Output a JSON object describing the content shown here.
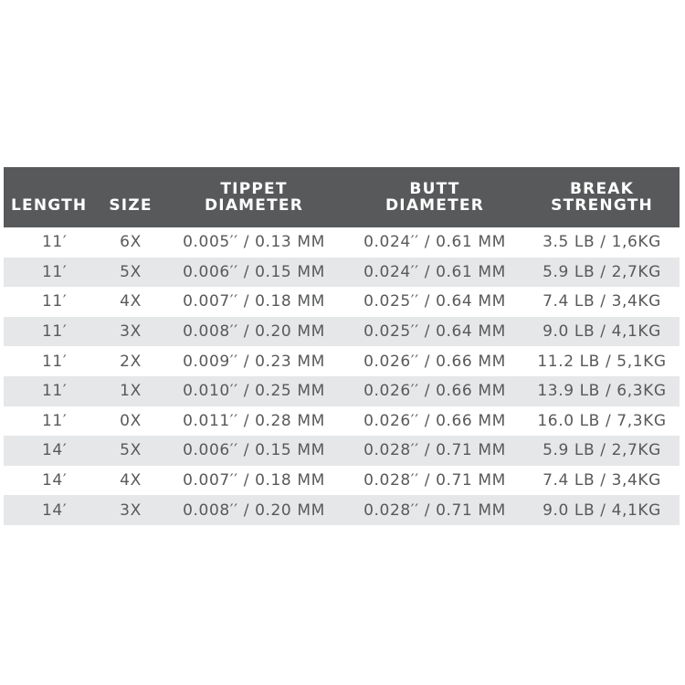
{
  "headers": {
    "length": "LENGTH",
    "size": "SIZE",
    "tippet_line1": "TIPPET",
    "tippet_line2": "DIAMETER",
    "butt_line1": "BUTT",
    "butt_line2": "DIAMETER",
    "break_line1": "BREAK",
    "break_line2": "STRENGTH"
  },
  "rows": [
    {
      "length": "11′",
      "size": "6X",
      "tippet": "0.005′′ / 0.13 MM",
      "butt": "0.024′′ / 0.61 MM",
      "break": "3.5 LB / 1,6KG"
    },
    {
      "length": "11′",
      "size": "5X",
      "tippet": "0.006′′ / 0.15 MM",
      "butt": "0.024′′ / 0.61 MM",
      "break": "5.9 LB / 2,7KG"
    },
    {
      "length": "11′",
      "size": "4X",
      "tippet": "0.007′′ / 0.18 MM",
      "butt": "0.025′′ / 0.64 MM",
      "break": "7.4 LB / 3,4KG"
    },
    {
      "length": "11′",
      "size": "3X",
      "tippet": "0.008′′ / 0.20 MM",
      "butt": "0.025′′ / 0.64 MM",
      "break": "9.0 LB / 4,1KG"
    },
    {
      "length": "11′",
      "size": "2X",
      "tippet": "0.009′′ / 0.23 MM",
      "butt": "0.026′′ / 0.66 MM",
      "break": "11.2 LB / 5,1KG"
    },
    {
      "length": "11′",
      "size": "1X",
      "tippet": "0.010′′ / 0.25 MM",
      "butt": "0.026′′ / 0.66 MM",
      "break": "13.9 LB / 6,3KG"
    },
    {
      "length": "11′",
      "size": "0X",
      "tippet": "0.011′′ / 0.28 MM",
      "butt": "0.026′′ / 0.66 MM",
      "break": "16.0 LB / 7,3KG"
    },
    {
      "length": "14′",
      "size": "5X",
      "tippet": "0.006′′ / 0.15 MM",
      "butt": "0.028′′ / 0.71 MM",
      "break": "5.9 LB / 2,7KG"
    },
    {
      "length": "14′",
      "size": "4X",
      "tippet": "0.007′′ / 0.18 MM",
      "butt": "0.028′′ / 0.71 MM",
      "break": "7.4 LB / 3,4KG"
    },
    {
      "length": "14′",
      "size": "3X",
      "tippet": "0.008′′ / 0.20 MM",
      "butt": "0.028′′ / 0.71 MM",
      "break": "9.0 LB / 4,1KG"
    }
  ],
  "colors": {
    "header_bg": "#58595b",
    "header_text": "#ffffff",
    "body_text": "#58595b",
    "stripe": "#e6e7e8"
  }
}
